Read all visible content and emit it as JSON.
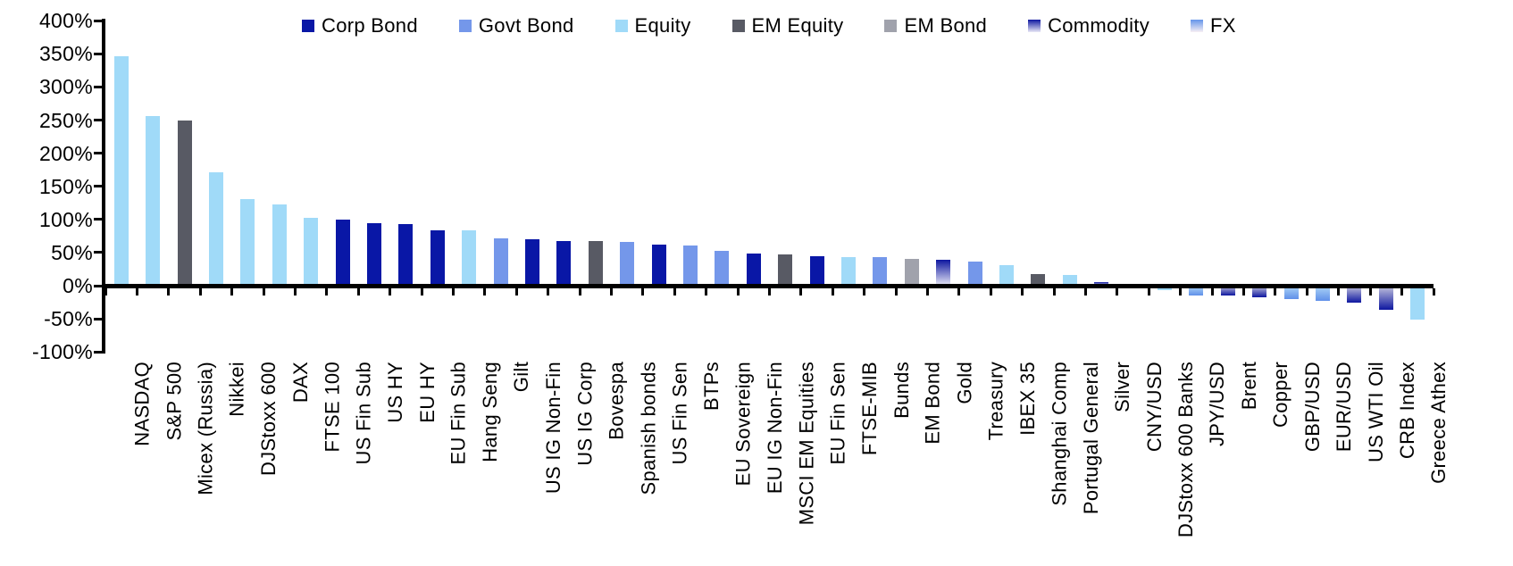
{
  "chart_data": {
    "type": "bar",
    "title": "",
    "xlabel": "",
    "ylabel": "",
    "ylim": [
      -100,
      400
    ],
    "ytick_step": 50,
    "ytick_suffix": "%",
    "grid": false,
    "legend_position": "top",
    "legend": [
      {
        "key": "corp_bond",
        "label": "Corp Bond",
        "style": "solid",
        "color": "#0917A6"
      },
      {
        "key": "govt_bond",
        "label": "Govt Bond",
        "style": "solid",
        "color": "#7497EA"
      },
      {
        "key": "equity",
        "label": "Equity",
        "style": "solid",
        "color": "#A0DAF8"
      },
      {
        "key": "em_equity",
        "label": "EM Equity",
        "style": "solid",
        "color": "#585A64"
      },
      {
        "key": "em_bond",
        "label": "EM Bond",
        "style": "solid",
        "color": "#A0A2AC"
      },
      {
        "key": "commodity",
        "label": "Commodity",
        "style": "gradient",
        "color": "#0E17A0",
        "color_light": "#E9E9F6",
        "neg_top": "#C6C6DE",
        "neg_bottom": "#0E17A0"
      },
      {
        "key": "fx",
        "label": "FX",
        "style": "gradient",
        "color": "#6495EA",
        "color_light": "#F7EFF4",
        "neg_top": "#AED6F7",
        "neg_bottom": "#6090E9"
      }
    ],
    "bars": [
      {
        "label": "NASDAQ",
        "value": 347,
        "category": "equity"
      },
      {
        "label": "S&P 500",
        "value": 256,
        "category": "equity"
      },
      {
        "label": "Micex (Russia)",
        "value": 250,
        "category": "em_equity"
      },
      {
        "label": "Nikkei",
        "value": 171,
        "category": "equity"
      },
      {
        "label": "DJStoxx 600",
        "value": 131,
        "category": "equity"
      },
      {
        "label": "DAX",
        "value": 122,
        "category": "equity"
      },
      {
        "label": "FTSE 100",
        "value": 103,
        "category": "equity"
      },
      {
        "label": "US Fin Sub",
        "value": 100,
        "category": "corp_bond"
      },
      {
        "label": "US HY",
        "value": 94,
        "category": "corp_bond"
      },
      {
        "label": "EU HY",
        "value": 93,
        "category": "corp_bond"
      },
      {
        "label": "EU Fin Sub",
        "value": 84,
        "category": "corp_bond"
      },
      {
        "label": "Hang Seng",
        "value": 83,
        "category": "equity"
      },
      {
        "label": "Gilt",
        "value": 72,
        "category": "govt_bond"
      },
      {
        "label": "US IG Non-Fin",
        "value": 70,
        "category": "corp_bond"
      },
      {
        "label": "US IG Corp",
        "value": 68,
        "category": "corp_bond"
      },
      {
        "label": "Bovespa",
        "value": 68,
        "category": "em_equity"
      },
      {
        "label": "Spanish bonds",
        "value": 66,
        "category": "govt_bond"
      },
      {
        "label": "US Fin Sen",
        "value": 62,
        "category": "corp_bond"
      },
      {
        "label": "BTPs",
        "value": 61,
        "category": "govt_bond"
      },
      {
        "label": "EU Sovereign",
        "value": 52,
        "category": "govt_bond"
      },
      {
        "label": "EU IG Non-Fin",
        "value": 48,
        "category": "corp_bond"
      },
      {
        "label": "MSCI EM Equities",
        "value": 47,
        "category": "em_equity"
      },
      {
        "label": "EU Fin Sen",
        "value": 44,
        "category": "corp_bond"
      },
      {
        "label": "FTSE-MIB",
        "value": 43,
        "category": "equity"
      },
      {
        "label": "Bunds",
        "value": 43,
        "category": "govt_bond"
      },
      {
        "label": "EM Bond",
        "value": 40,
        "category": "em_bond"
      },
      {
        "label": "Gold",
        "value": 39,
        "category": "commodity"
      },
      {
        "label": "Treasury",
        "value": 37,
        "category": "govt_bond"
      },
      {
        "label": "IBEX 35",
        "value": 31,
        "category": "equity"
      },
      {
        "label": "Shanghai Comp",
        "value": 17,
        "category": "em_equity"
      },
      {
        "label": "Portugal General",
        "value": 16,
        "category": "equity"
      },
      {
        "label": "Silver",
        "value": 6,
        "category": "commodity"
      },
      {
        "label": "CNY/USD",
        "value": -1,
        "category": "fx"
      },
      {
        "label": "DJStoxx 600 Banks",
        "value": -7,
        "category": "equity"
      },
      {
        "label": "JPY/USD",
        "value": -15,
        "category": "fx"
      },
      {
        "label": "Brent",
        "value": -15,
        "category": "commodity"
      },
      {
        "label": "Copper",
        "value": -17,
        "category": "commodity"
      },
      {
        "label": "GBP/USD",
        "value": -20,
        "category": "fx"
      },
      {
        "label": "EUR/USD",
        "value": -23,
        "category": "fx"
      },
      {
        "label": "US WTI Oil",
        "value": -26,
        "category": "commodity"
      },
      {
        "label": "CRB Index",
        "value": -37,
        "category": "commodity"
      },
      {
        "label": "Greece Athex",
        "value": -51,
        "category": "equity"
      }
    ]
  }
}
